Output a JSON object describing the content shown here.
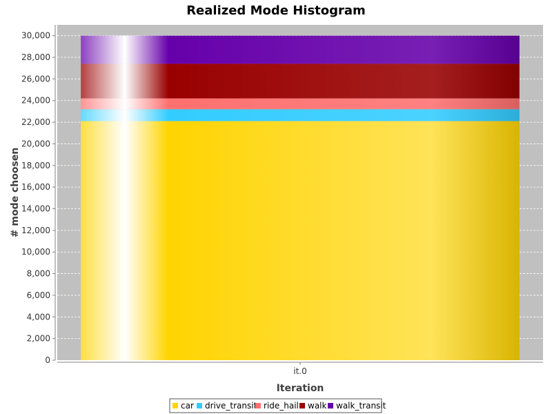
{
  "chart_data": {
    "type": "bar",
    "stacked": true,
    "title": "Realized Mode Histogram",
    "xlabel": "Iteration",
    "ylabel": "# mode choosen",
    "categories": [
      "it.0"
    ],
    "ylim": [
      0,
      31000
    ],
    "yticks": [
      0,
      2000,
      4000,
      6000,
      8000,
      10000,
      12000,
      14000,
      16000,
      18000,
      20000,
      22000,
      24000,
      26000,
      28000,
      30000
    ],
    "grid": true,
    "legend_position": "bottom",
    "series": [
      {
        "name": "car",
        "values": [
          22100
        ],
        "color": "#FFD400"
      },
      {
        "name": "drive_transit",
        "values": [
          1100
        ],
        "color": "#33CCFF"
      },
      {
        "name": "ride_hail",
        "values": [
          1000
        ],
        "color": "#FF7070"
      },
      {
        "name": "walk",
        "values": [
          3200
        ],
        "color": "#990000"
      },
      {
        "name": "walk_transit",
        "values": [
          2600
        ],
        "color": "#6600AA"
      }
    ]
  }
}
